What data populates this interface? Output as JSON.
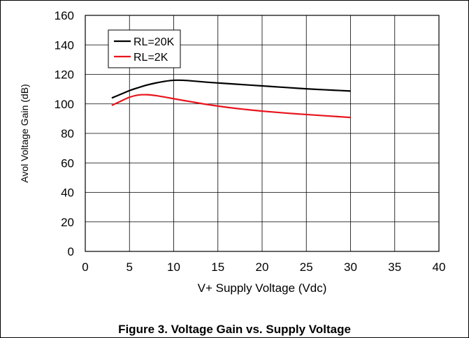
{
  "figure": {
    "caption": "Figure 3. Voltage Gain vs. Supply Voltage"
  },
  "chart_data": {
    "type": "line",
    "title": "",
    "xlabel": "V+  Supply Voltage (Vdc)",
    "ylabel": "Avol  Voltage Gain (dB)",
    "xlim": [
      0,
      40
    ],
    "ylim": [
      0,
      160
    ],
    "xticks": [
      "0",
      "5",
      "10",
      "15",
      "20",
      "25",
      "30",
      "35",
      "40"
    ],
    "yticks": [
      "0",
      "20",
      "40",
      "60",
      "80",
      "100",
      "120",
      "140",
      "160"
    ],
    "grid": true,
    "legend_position": "top-left",
    "series": [
      {
        "name": "RL=20K",
        "color": "#000000",
        "x": [
          3,
          4,
          5,
          6,
          7,
          8,
          9,
          10,
          11,
          12,
          14,
          16,
          18,
          20,
          22,
          24,
          26,
          28,
          30
        ],
        "y": [
          104,
          106.5,
          109,
          111,
          112.8,
          114.2,
          115.3,
          116,
          116,
          115.6,
          114.6,
          113.8,
          113,
          112.2,
          111.4,
          110.6,
          109.9,
          109.3,
          108.7
        ]
      },
      {
        "name": "RL=2K",
        "color": "#e8141c",
        "x": [
          3,
          4,
          5,
          6,
          7,
          8,
          9,
          10,
          12,
          14,
          16,
          18,
          20,
          22,
          24,
          26,
          28,
          30
        ],
        "y": [
          99,
          101.8,
          104.5,
          106,
          106.2,
          105.6,
          104.6,
          103.5,
          101.4,
          99.4,
          97.7,
          96.3,
          95.1,
          94.1,
          93.2,
          92.4,
          91.6,
          90.8
        ]
      }
    ]
  }
}
